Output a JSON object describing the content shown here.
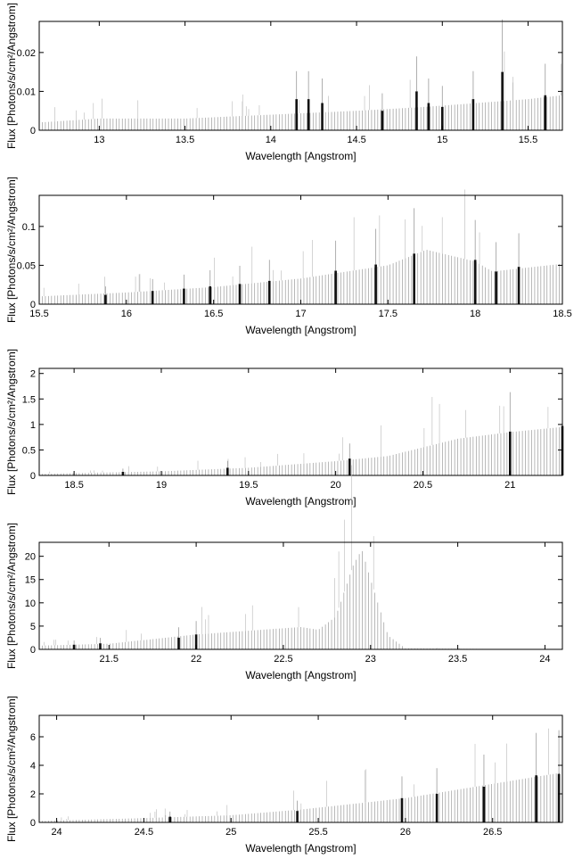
{
  "chart_data": [
    {
      "type": "bar",
      "xlabel": "Wavelength [Angstrom]",
      "ylabel": "Flux [Photons/s/cm²/Angstrom]",
      "xlim": [
        12.65,
        15.7
      ],
      "ylim": [
        0,
        0.028
      ],
      "xticks": [
        "13",
        "13.5",
        "14",
        "14.5",
        "15",
        "15.5"
      ],
      "xtick_values": [
        13,
        13.5,
        14,
        14.5,
        15,
        15.5
      ],
      "yticks": [
        "0",
        "0.01",
        "0.02"
      ],
      "ytick_values": [
        0,
        0.01,
        0.02
      ],
      "background": [
        [
          12.65,
          0.002
        ],
        [
          13.0,
          0.003
        ],
        [
          13.5,
          0.003
        ],
        [
          14.0,
          0.004
        ],
        [
          14.5,
          0.005
        ],
        [
          14.9,
          0.006
        ],
        [
          15.2,
          0.007
        ],
        [
          15.5,
          0.008
        ],
        [
          15.7,
          0.009
        ]
      ],
      "spikes": [
        [
          14.15,
          0.008
        ],
        [
          14.22,
          0.008
        ],
        [
          14.3,
          0.007
        ],
        [
          14.65,
          0.005
        ],
        [
          14.85,
          0.01
        ],
        [
          14.92,
          0.007
        ],
        [
          15.0,
          0.006
        ],
        [
          15.18,
          0.008
        ],
        [
          15.35,
          0.015
        ],
        [
          15.6,
          0.009
        ]
      ]
    },
    {
      "type": "bar",
      "xlabel": "Wavelength [Angstrom]",
      "ylabel": "Flux [Photons/s/cm²/Angstrom]",
      "xlim": [
        15.5,
        18.5
      ],
      "ylim": [
        0,
        0.14
      ],
      "xticks": [
        "15.5",
        "16",
        "16.5",
        "17",
        "17.5",
        "18",
        "18.5"
      ],
      "xtick_values": [
        15.5,
        16,
        16.5,
        17,
        17.5,
        18,
        18.5
      ],
      "yticks": [
        "0",
        "0.05",
        "0.1"
      ],
      "ytick_values": [
        0,
        0.05,
        0.1
      ],
      "background": [
        [
          15.5,
          0.01
        ],
        [
          16.0,
          0.015
        ],
        [
          16.5,
          0.022
        ],
        [
          17.0,
          0.033
        ],
        [
          17.5,
          0.05
        ],
        [
          17.72,
          0.07
        ],
        [
          18.0,
          0.055
        ],
        [
          18.1,
          0.042
        ],
        [
          18.5,
          0.052
        ]
      ],
      "spikes": [
        [
          15.88,
          0.012
        ],
        [
          16.15,
          0.017
        ],
        [
          16.33,
          0.02
        ],
        [
          16.48,
          0.023
        ],
        [
          16.65,
          0.026
        ],
        [
          16.82,
          0.03
        ],
        [
          17.2,
          0.043
        ],
        [
          17.43,
          0.051
        ],
        [
          17.65,
          0.065
        ],
        [
          18.0,
          0.057
        ],
        [
          18.12,
          0.042
        ],
        [
          18.25,
          0.048
        ]
      ]
    },
    {
      "type": "bar",
      "xlabel": "Wavelength [Angstrom]",
      "ylabel": "Flux [Photons/s/cm²/Angstrom]",
      "xlim": [
        18.3,
        21.3
      ],
      "ylim": [
        0,
        2.1
      ],
      "xticks": [
        "18.5",
        "19",
        "19.5",
        "20",
        "20.5",
        "21"
      ],
      "xtick_values": [
        18.5,
        19,
        19.5,
        20,
        20.5,
        21
      ],
      "yticks": [
        "0",
        "0.5",
        "1",
        "1.5",
        "2"
      ],
      "ytick_values": [
        0,
        0.5,
        1,
        1.5,
        2
      ],
      "background": [
        [
          18.3,
          0.03
        ],
        [
          19.0,
          0.08
        ],
        [
          19.5,
          0.15
        ],
        [
          20.0,
          0.28
        ],
        [
          20.3,
          0.38
        ],
        [
          20.5,
          0.55
        ],
        [
          20.7,
          0.72
        ],
        [
          21.0,
          0.85
        ],
        [
          21.3,
          0.95
        ]
      ],
      "spikes": [
        [
          18.78,
          0.07
        ],
        [
          19.38,
          0.15
        ],
        [
          20.08,
          0.33
        ],
        [
          21.0,
          0.86
        ],
        [
          21.3,
          0.97
        ]
      ]
    },
    {
      "type": "bar",
      "xlabel": "Wavelength [Angstrom]",
      "ylabel": "Flux [Photons/s/cm²/Angstrom]",
      "xlim": [
        21.1,
        24.1
      ],
      "ylim": [
        0,
        23
      ],
      "xticks": [
        "21.5",
        "22",
        "22.5",
        "23",
        "23.5",
        "24"
      ],
      "xtick_values": [
        21.5,
        22,
        22.5,
        23,
        23.5,
        24
      ],
      "yticks": [
        "0",
        "5",
        "10",
        "15",
        "20"
      ],
      "ytick_values": [
        0,
        5,
        10,
        15,
        20
      ],
      "background": [
        [
          21.1,
          0.8
        ],
        [
          21.5,
          1.2
        ],
        [
          22.0,
          3.2
        ],
        [
          22.6,
          4.8
        ],
        [
          22.7,
          4.2
        ],
        [
          22.8,
          7
        ],
        [
          22.9,
          18
        ],
        [
          22.95,
          21.5
        ],
        [
          23.0,
          15
        ],
        [
          23.1,
          3
        ],
        [
          23.2,
          0.2
        ],
        [
          24.1,
          0.0
        ]
      ],
      "spikes": [
        [
          21.3,
          1.0
        ],
        [
          21.45,
          1.3
        ],
        [
          21.9,
          2.5
        ],
        [
          22.0,
          3.2
        ]
      ]
    },
    {
      "type": "bar",
      "xlabel": "Wavelength [Angstrom]",
      "ylabel": "Flux [Photons/s/cm²/Angstrom]",
      "xlim": [
        23.9,
        26.9
      ],
      "ylim": [
        0,
        7.5
      ],
      "xticks": [
        "24",
        "24.5",
        "25",
        "25.5",
        "26",
        "26.5"
      ],
      "xtick_values": [
        24,
        24.5,
        25,
        25.5,
        26,
        26.5
      ],
      "yticks": [
        "0",
        "2",
        "4",
        "6"
      ],
      "ytick_values": [
        0,
        2,
        4,
        6
      ],
      "background": [
        [
          23.9,
          0.1
        ],
        [
          24.5,
          0.3
        ],
        [
          25.0,
          0.5
        ],
        [
          25.4,
          0.9
        ],
        [
          25.7,
          1.3
        ],
        [
          26.0,
          1.7
        ],
        [
          26.5,
          2.7
        ],
        [
          26.9,
          3.5
        ]
      ],
      "spikes": [
        [
          24.65,
          0.4
        ],
        [
          25.38,
          0.8
        ],
        [
          25.98,
          1.7
        ],
        [
          26.18,
          2.0
        ],
        [
          26.45,
          2.5
        ],
        [
          26.75,
          3.3
        ],
        [
          26.88,
          3.4
        ]
      ]
    }
  ]
}
